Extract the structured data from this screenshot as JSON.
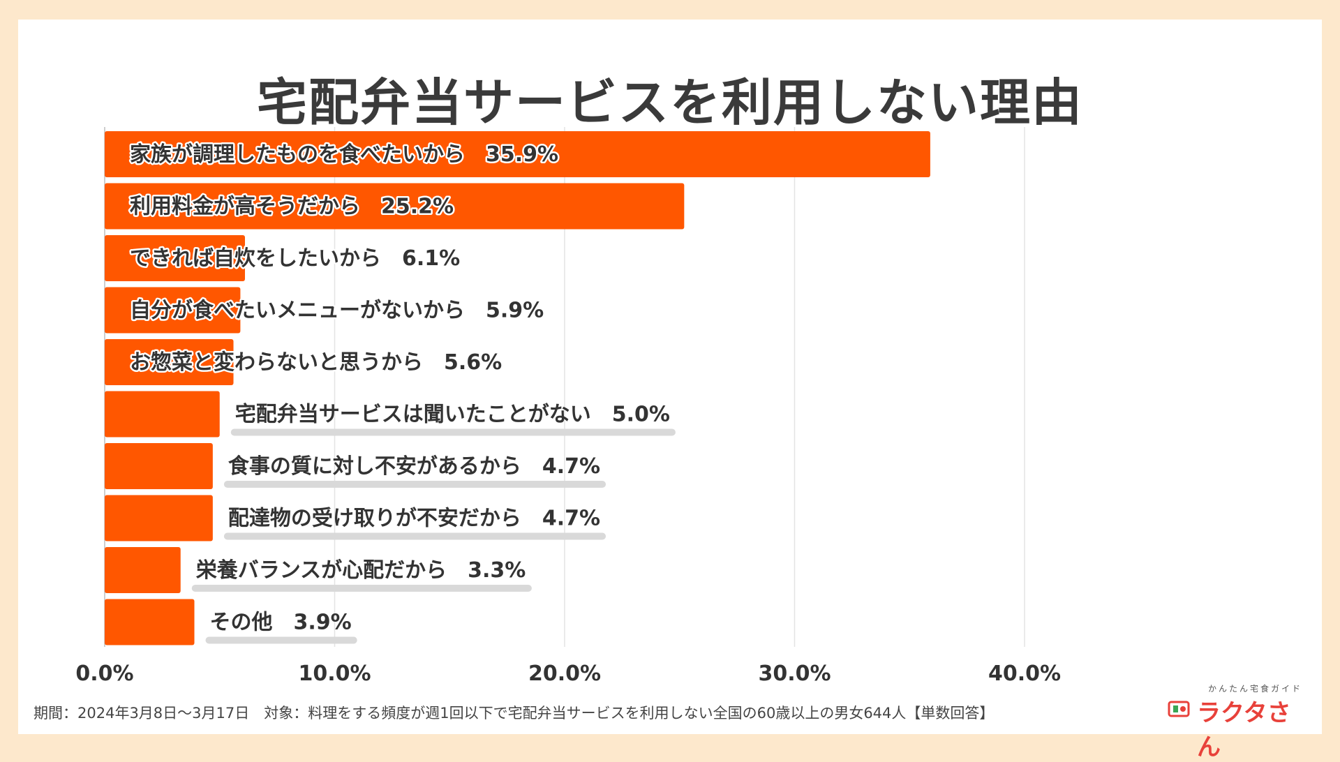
{
  "title": "宅配弁当サービスを利用しない理由",
  "colors": {
    "bar": "#ff5700",
    "grid": "#e3e3e3",
    "label": "#333333",
    "pill": "#d9d9d9"
  },
  "chart_data": {
    "type": "bar",
    "orientation": "horizontal",
    "categories": [
      "家族が調理したものを食べたいから",
      "利用料金が高そうだから",
      "できれば自炊をしたいから",
      "自分が食べたいメニューがないから",
      "お惣菜と変わらないと思うから",
      "宅配弁当サービスは聞いたことがない",
      "食事の質に対し不安があるから",
      "配達物の受け取りが不安だから",
      "栄養バランスが心配だから",
      "その他"
    ],
    "values": [
      35.9,
      25.2,
      6.1,
      5.9,
      5.6,
      5.0,
      4.7,
      4.7,
      3.3,
      3.9
    ],
    "value_labels": [
      "35.9%",
      "25.2%",
      "6.1%",
      "5.9%",
      "5.6%",
      "5.0%",
      "4.7%",
      "4.7%",
      "3.3%",
      "3.9%"
    ],
    "xlim": [
      0,
      40
    ],
    "x_ticks": [
      "0.0%",
      "10.0%",
      "20.0%",
      "30.0%",
      "40.0%"
    ],
    "x_tick_values": [
      0,
      10,
      20,
      30,
      40
    ],
    "grid": true
  },
  "footer": "期間：2024年3月8日〜3月17日　対象：料理をする頻度が週1回以下で宅配弁当サービスを利用しない全国の60歳以上の男女644人【単数回答】",
  "logo": {
    "tagline": "かんたん宅食ガイド",
    "name": "ラクタさん"
  }
}
